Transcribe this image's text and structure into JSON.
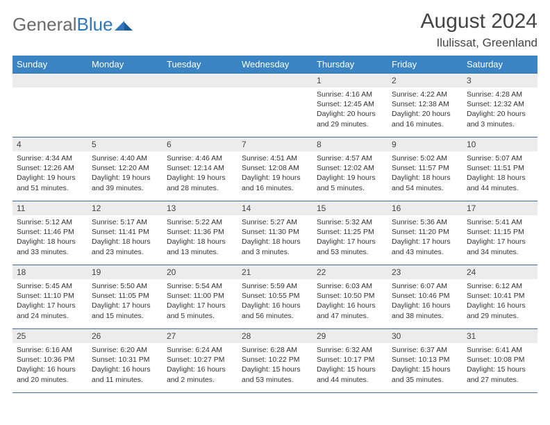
{
  "logo": {
    "text1": "General",
    "text2": "Blue"
  },
  "title": "August 2024",
  "location": "Ilulissat, Greenland",
  "colors": {
    "header_bg": "#3a84c4",
    "header_text": "#ffffff",
    "cell_border": "#3a70a0",
    "daynum_bg": "#ececec",
    "logo_gray": "#6b6b6b",
    "logo_blue": "#2f77b8"
  },
  "day_headers": [
    "Sunday",
    "Monday",
    "Tuesday",
    "Wednesday",
    "Thursday",
    "Friday",
    "Saturday"
  ],
  "weeks": [
    [
      {
        "blank": true
      },
      {
        "blank": true
      },
      {
        "blank": true
      },
      {
        "blank": true
      },
      {
        "n": "1",
        "sr": "4:16 AM",
        "ss": "12:45 AM",
        "dl": "20 hours and 29 minutes."
      },
      {
        "n": "2",
        "sr": "4:22 AM",
        "ss": "12:38 AM",
        "dl": "20 hours and 16 minutes."
      },
      {
        "n": "3",
        "sr": "4:28 AM",
        "ss": "12:32 AM",
        "dl": "20 hours and 3 minutes."
      }
    ],
    [
      {
        "n": "4",
        "sr": "4:34 AM",
        "ss": "12:26 AM",
        "dl": "19 hours and 51 minutes."
      },
      {
        "n": "5",
        "sr": "4:40 AM",
        "ss": "12:20 AM",
        "dl": "19 hours and 39 minutes."
      },
      {
        "n": "6",
        "sr": "4:46 AM",
        "ss": "12:14 AM",
        "dl": "19 hours and 28 minutes."
      },
      {
        "n": "7",
        "sr": "4:51 AM",
        "ss": "12:08 AM",
        "dl": "19 hours and 16 minutes."
      },
      {
        "n": "8",
        "sr": "4:57 AM",
        "ss": "12:02 AM",
        "dl": "19 hours and 5 minutes."
      },
      {
        "n": "9",
        "sr": "5:02 AM",
        "ss": "11:57 PM",
        "dl": "18 hours and 54 minutes."
      },
      {
        "n": "10",
        "sr": "5:07 AM",
        "ss": "11:51 PM",
        "dl": "18 hours and 44 minutes."
      }
    ],
    [
      {
        "n": "11",
        "sr": "5:12 AM",
        "ss": "11:46 PM",
        "dl": "18 hours and 33 minutes."
      },
      {
        "n": "12",
        "sr": "5:17 AM",
        "ss": "11:41 PM",
        "dl": "18 hours and 23 minutes."
      },
      {
        "n": "13",
        "sr": "5:22 AM",
        "ss": "11:36 PM",
        "dl": "18 hours and 13 minutes."
      },
      {
        "n": "14",
        "sr": "5:27 AM",
        "ss": "11:30 PM",
        "dl": "18 hours and 3 minutes."
      },
      {
        "n": "15",
        "sr": "5:32 AM",
        "ss": "11:25 PM",
        "dl": "17 hours and 53 minutes."
      },
      {
        "n": "16",
        "sr": "5:36 AM",
        "ss": "11:20 PM",
        "dl": "17 hours and 43 minutes."
      },
      {
        "n": "17",
        "sr": "5:41 AM",
        "ss": "11:15 PM",
        "dl": "17 hours and 34 minutes."
      }
    ],
    [
      {
        "n": "18",
        "sr": "5:45 AM",
        "ss": "11:10 PM",
        "dl": "17 hours and 24 minutes."
      },
      {
        "n": "19",
        "sr": "5:50 AM",
        "ss": "11:05 PM",
        "dl": "17 hours and 15 minutes."
      },
      {
        "n": "20",
        "sr": "5:54 AM",
        "ss": "11:00 PM",
        "dl": "17 hours and 5 minutes."
      },
      {
        "n": "21",
        "sr": "5:59 AM",
        "ss": "10:55 PM",
        "dl": "16 hours and 56 minutes."
      },
      {
        "n": "22",
        "sr": "6:03 AM",
        "ss": "10:50 PM",
        "dl": "16 hours and 47 minutes."
      },
      {
        "n": "23",
        "sr": "6:07 AM",
        "ss": "10:46 PM",
        "dl": "16 hours and 38 minutes."
      },
      {
        "n": "24",
        "sr": "6:12 AM",
        "ss": "10:41 PM",
        "dl": "16 hours and 29 minutes."
      }
    ],
    [
      {
        "n": "25",
        "sr": "6:16 AM",
        "ss": "10:36 PM",
        "dl": "16 hours and 20 minutes."
      },
      {
        "n": "26",
        "sr": "6:20 AM",
        "ss": "10:31 PM",
        "dl": "16 hours and 11 minutes."
      },
      {
        "n": "27",
        "sr": "6:24 AM",
        "ss": "10:27 PM",
        "dl": "16 hours and 2 minutes."
      },
      {
        "n": "28",
        "sr": "6:28 AM",
        "ss": "10:22 PM",
        "dl": "15 hours and 53 minutes."
      },
      {
        "n": "29",
        "sr": "6:32 AM",
        "ss": "10:17 PM",
        "dl": "15 hours and 44 minutes."
      },
      {
        "n": "30",
        "sr": "6:37 AM",
        "ss": "10:13 PM",
        "dl": "15 hours and 35 minutes."
      },
      {
        "n": "31",
        "sr": "6:41 AM",
        "ss": "10:08 PM",
        "dl": "15 hours and 27 minutes."
      }
    ]
  ],
  "labels": {
    "sunrise": "Sunrise:",
    "sunset": "Sunset:",
    "daylight": "Daylight:"
  }
}
